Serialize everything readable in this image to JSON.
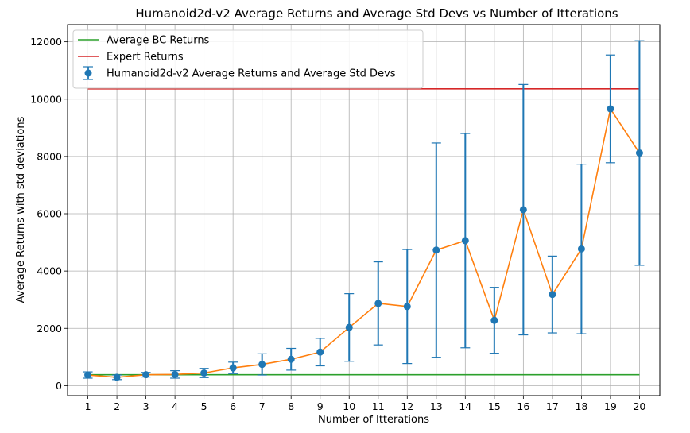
{
  "chart_data": {
    "type": "line",
    "title": "Humanoid2d-v2 Average Returns and Average Std Devs vs Number of Itterations",
    "xlabel": "Number of Itterations",
    "ylabel": "Average Returns with std deviations",
    "x": [
      1,
      2,
      3,
      4,
      5,
      6,
      7,
      8,
      9,
      10,
      11,
      12,
      13,
      14,
      15,
      16,
      17,
      18,
      19,
      20
    ],
    "xlim": [
      0.3,
      20.7
    ],
    "ylim": [
      -350,
      12600
    ],
    "yticks": [
      0,
      2000,
      4000,
      6000,
      8000,
      10000,
      12000
    ],
    "grid": true,
    "legend_position": "top-left",
    "series": [
      {
        "name": "Average BC Returns",
        "kind": "line",
        "color": "#2ca02c",
        "values": [
          380,
          380,
          380,
          380,
          380,
          380,
          380,
          380,
          380,
          380,
          380,
          380,
          380,
          380,
          380,
          380,
          380,
          380,
          380,
          380
        ]
      },
      {
        "name": "Expert Returns",
        "kind": "line",
        "color": "#d62728",
        "values": [
          10360,
          10360,
          10360,
          10360,
          10360,
          10360,
          10360,
          10360,
          10360,
          10360,
          10360,
          10360,
          10360,
          10360,
          10360,
          10360,
          10360,
          10360,
          10360,
          10360
        ]
      },
      {
        "name": "Humanoid2d-v2 Average Returns and Average Std Devs",
        "kind": "errorbar",
        "color": "#1f77b4",
        "line_color": "#ff7f0e",
        "values": [
          370,
          290,
          380,
          390,
          440,
          620,
          740,
          920,
          1170,
          2030,
          2870,
          2760,
          4730,
          5060,
          2280,
          6140,
          3180,
          4770,
          9660,
          8120
        ],
        "std": [
          110,
          80,
          80,
          130,
          160,
          200,
          370,
          380,
          480,
          1180,
          1450,
          1990,
          3740,
          3740,
          1150,
          4370,
          1340,
          2960,
          1880,
          3920
        ]
      }
    ]
  }
}
